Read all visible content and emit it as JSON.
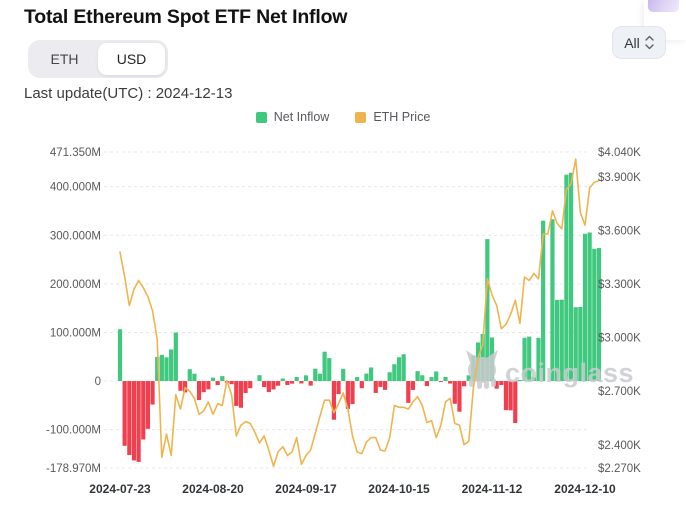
{
  "header": {
    "title": "Total Ethereum Spot ETF Net Inflow",
    "currency_toggle": {
      "options": [
        "ETH",
        "USD"
      ],
      "active": "USD"
    },
    "range_selector": {
      "label": "All"
    },
    "last_update": "Last update(UTC) : 2024-12-13"
  },
  "legend": [
    {
      "label": "Net Inflow",
      "color": "#3fc87e"
    },
    {
      "label": "ETH Price",
      "color": "#f0b44f"
    }
  ],
  "watermark": {
    "text": "coinglass"
  },
  "colors": {
    "bar_positive": "#3fc87e",
    "bar_negative": "#f0404f",
    "price_line": "#f0b44f",
    "grid": "#e8e8ea",
    "axis_text": "#57595c",
    "x_axis_text": "#323538",
    "watermark": "#c9cbce"
  },
  "chart_data": {
    "type": "bar+line",
    "title": "Total Ethereum Spot ETF Net Inflow",
    "grid": "horizontal-dashed",
    "legend_position": "top-center",
    "dates": [
      "2024-07-23",
      "2024-07-24",
      "2024-07-25",
      "2024-07-26",
      "2024-07-29",
      "2024-07-30",
      "2024-07-31",
      "2024-08-01",
      "2024-08-02",
      "2024-08-05",
      "2024-08-06",
      "2024-08-07",
      "2024-08-08",
      "2024-08-09",
      "2024-08-12",
      "2024-08-13",
      "2024-08-14",
      "2024-08-15",
      "2024-08-16",
      "2024-08-19",
      "2024-08-20",
      "2024-08-21",
      "2024-08-22",
      "2024-08-23",
      "2024-08-26",
      "2024-08-27",
      "2024-08-28",
      "2024-08-29",
      "2024-08-30",
      "2024-09-02",
      "2024-09-03",
      "2024-09-04",
      "2024-09-05",
      "2024-09-06",
      "2024-09-09",
      "2024-09-10",
      "2024-09-11",
      "2024-09-12",
      "2024-09-13",
      "2024-09-16",
      "2024-09-17",
      "2024-09-18",
      "2024-09-19",
      "2024-09-20",
      "2024-09-23",
      "2024-09-24",
      "2024-09-25",
      "2024-09-26",
      "2024-09-27",
      "2024-09-30",
      "2024-10-01",
      "2024-10-02",
      "2024-10-03",
      "2024-10-04",
      "2024-10-07",
      "2024-10-08",
      "2024-10-09",
      "2024-10-10",
      "2024-10-11",
      "2024-10-14",
      "2024-10-15",
      "2024-10-16",
      "2024-10-17",
      "2024-10-18",
      "2024-10-21",
      "2024-10-22",
      "2024-10-23",
      "2024-10-24",
      "2024-10-25",
      "2024-10-28",
      "2024-10-29",
      "2024-10-30",
      "2024-10-31",
      "2024-11-01",
      "2024-11-04",
      "2024-11-05",
      "2024-11-06",
      "2024-11-07",
      "2024-11-08",
      "2024-11-11",
      "2024-11-12",
      "2024-11-13",
      "2024-11-14",
      "2024-11-15",
      "2024-11-18",
      "2024-11-19",
      "2024-11-20",
      "2024-11-21",
      "2024-11-22",
      "2024-11-25",
      "2024-11-26",
      "2024-11-27",
      "2024-11-28",
      "2024-11-29",
      "2024-12-02",
      "2024-12-03",
      "2024-12-04",
      "2024-12-05",
      "2024-12-06",
      "2024-12-09",
      "2024-12-10",
      "2024-12-11",
      "2024-12-12",
      "2024-12-13"
    ],
    "series": [
      {
        "name": "Net Inflow",
        "type": "bar",
        "unit": "USD millions",
        "values": [
          106.6,
          -133.3,
          -152.3,
          -163.4,
          -166.4,
          -120.3,
          -98.3,
          -48.4,
          49.6,
          53.9,
          48.8,
          65.0,
          99.8,
          -20.1,
          -23.4,
          24.3,
          15.1,
          -39.2,
          -23.0,
          -17.2,
          7.0,
          -8.3,
          10.2,
          -3.5,
          -6.5,
          -51.2,
          -55.0,
          -24.6,
          -14.8,
          0,
          12.1,
          -12.4,
          -22.7,
          -17.3,
          -9.7,
          5.2,
          -8.1,
          -5.4,
          8.4,
          -4.9,
          11.7,
          -9.4,
          25.4,
          15.1,
          60.4,
          47.2,
          -79.6,
          -26.8,
          25.1,
          -57.3,
          -47.4,
          8.2,
          -14.7,
          15.3,
          27.9,
          -24.5,
          -12.1,
          -18.2,
          18.1,
          34.6,
          48.9,
          55.1,
          -44.9,
          -18.3,
          20.4,
          11.9,
          -10.4,
          8.1,
          19.7,
          -2.1,
          8.4,
          -5.2,
          -46.8,
          -63.2,
          -10.9,
          11.8,
          52.3,
          79.4,
          96.8,
          292.1,
          89.7,
          -15.7,
          -8.2,
          -59.8,
          -60.3,
          -86.4,
          2.1,
          89.2,
          91.4,
          8.1,
          88.9,
          330.0,
          0,
          332.9,
          167.0,
          167.4,
          424.7,
          428.5,
          151.9,
          152.3,
          303.0,
          305.7,
          272.0,
          273.7
        ]
      },
      {
        "name": "ETH Price",
        "type": "line",
        "unit": "USD",
        "values": [
          3480,
          3340,
          3180,
          3270,
          3320,
          3280,
          3230,
          3150,
          2990,
          2330,
          2460,
          2340,
          2680,
          2600,
          2720,
          2700,
          2660,
          2570,
          2590,
          2640,
          2570,
          2630,
          2620,
          2760,
          2680,
          2450,
          2510,
          2530,
          2520,
          2470,
          2410,
          2450,
          2370,
          2280,
          2360,
          2390,
          2340,
          2360,
          2440,
          2290,
          2340,
          2370,
          2465,
          2560,
          2650,
          2650,
          2580,
          2630,
          2690,
          2600,
          2450,
          2360,
          2350,
          2415,
          2440,
          2440,
          2370,
          2365,
          2440,
          2620,
          2610,
          2610,
          2600,
          2640,
          2670,
          2620,
          2525,
          2535,
          2440,
          2510,
          2640,
          2660,
          2520,
          2510,
          2400,
          2420,
          2720,
          2890,
          2960,
          3330,
          3240,
          3180,
          3050,
          3075,
          3130,
          3210,
          3080,
          3340,
          3320,
          3360,
          3330,
          3580,
          3580,
          3710,
          3640,
          3610,
          3830,
          3860,
          4000,
          3700,
          3630,
          3840,
          3870,
          3880
        ]
      }
    ],
    "left_axis": {
      "range": [
        -178.97,
        471.35
      ],
      "ticks": [
        {
          "label": "471.350M",
          "value": 471.35
        },
        {
          "label": "400.000M",
          "value": 400
        },
        {
          "label": "300.000M",
          "value": 300
        },
        {
          "label": "200.000M",
          "value": 200
        },
        {
          "label": "100.000M",
          "value": 100
        },
        {
          "label": "0",
          "value": 0
        },
        {
          "label": "-100.000M",
          "value": -100
        },
        {
          "label": "-178.970M",
          "value": -178.97
        }
      ]
    },
    "right_axis": {
      "range": [
        2270,
        4040
      ],
      "ticks": [
        {
          "label": "$4.040K",
          "value": 4040
        },
        {
          "label": "$3.900K",
          "value": 3900
        },
        {
          "label": "$3.600K",
          "value": 3600
        },
        {
          "label": "$3.300K",
          "value": 3300
        },
        {
          "label": "$3.000K",
          "value": 3000
        },
        {
          "label": "$2.700K",
          "value": 2700
        },
        {
          "label": "$2.400K",
          "value": 2400
        },
        {
          "label": "$2.270K",
          "value": 2270
        }
      ]
    },
    "x_axis": {
      "tick_indices": [
        0,
        20,
        40,
        60,
        80,
        100
      ],
      "tick_labels": [
        "2024-07-23",
        "2024-08-20",
        "2024-09-17",
        "2024-10-15",
        "2024-11-12",
        "2024-12-10"
      ]
    }
  }
}
